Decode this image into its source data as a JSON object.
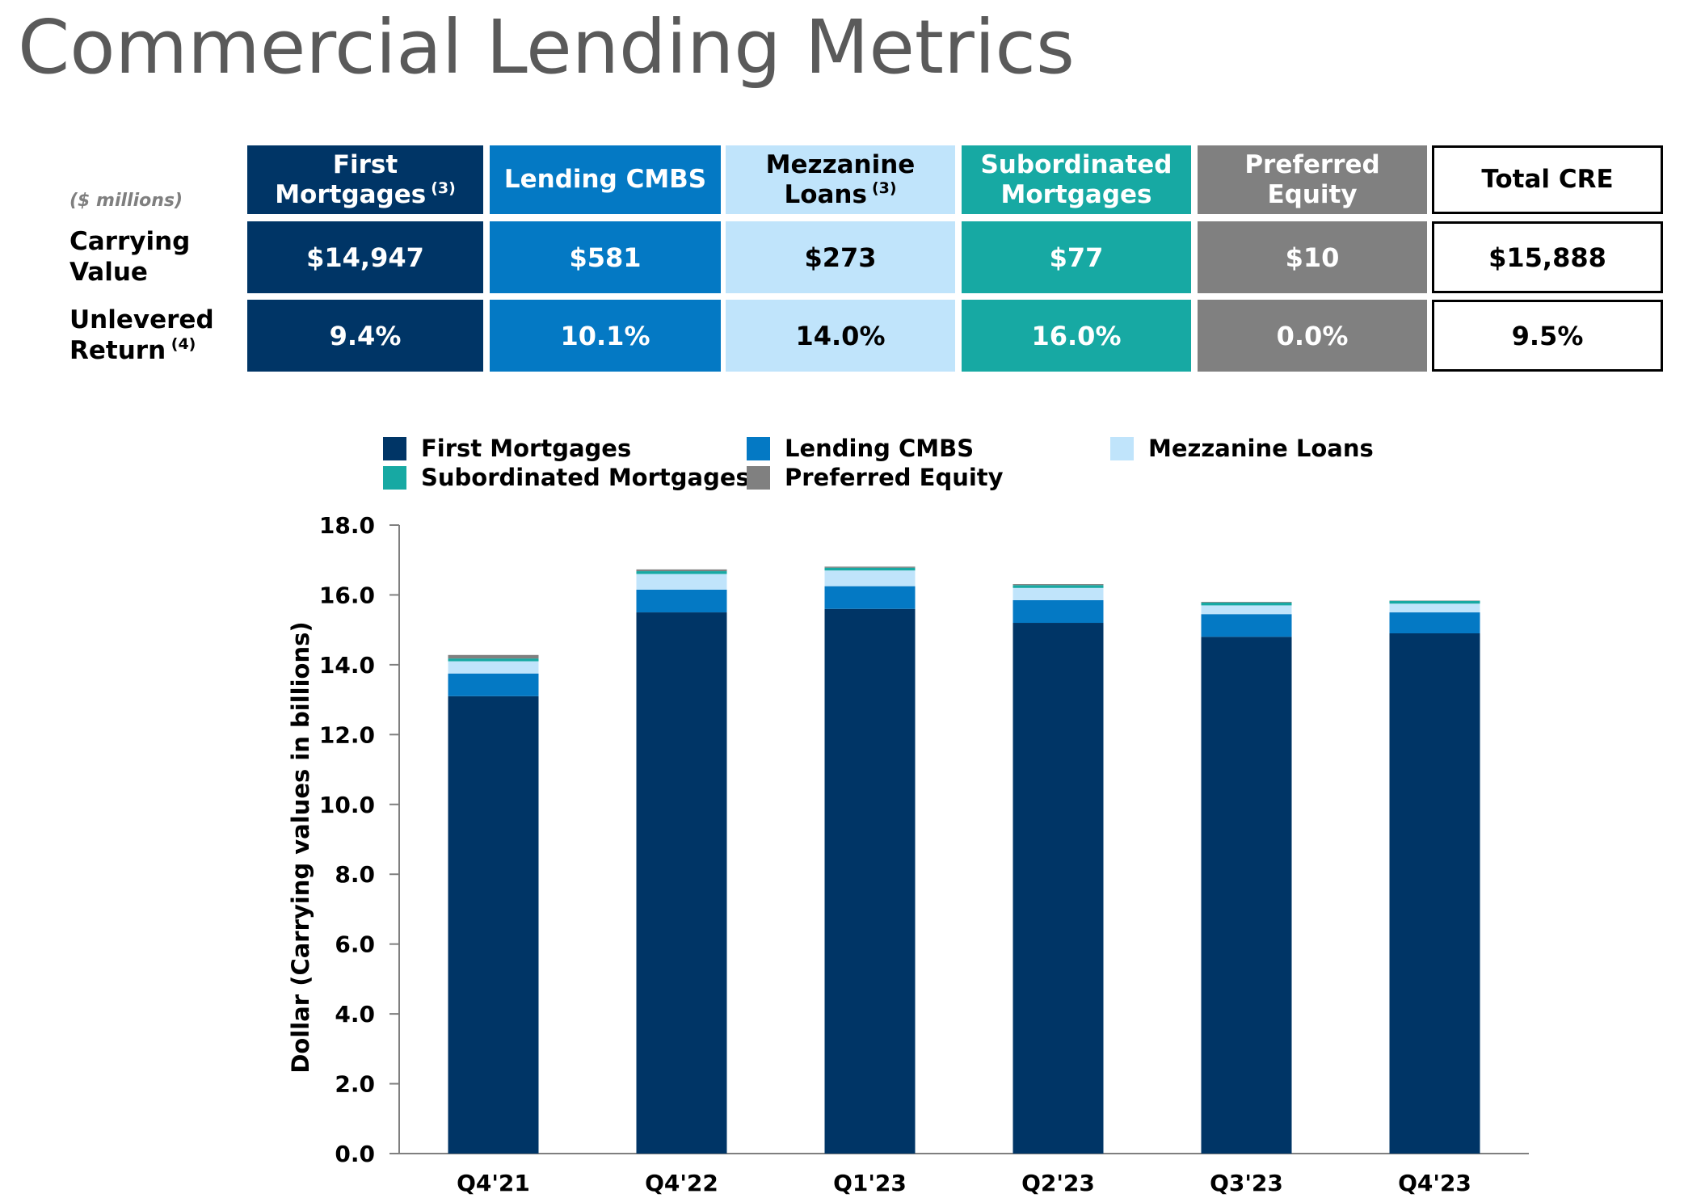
{
  "title": "Commercial Lending Metrics",
  "table": {
    "units_label": "($ millions)",
    "rows": [
      {
        "label_lines": [
          "Carrying",
          "Value"
        ],
        "footnote": ""
      },
      {
        "label_lines": [
          "Unlevered",
          "Return"
        ],
        "footnote": "(4)"
      }
    ],
    "columns": [
      {
        "key": "first",
        "header_lines": [
          "First Mortgages"
        ],
        "footnote": "(3)",
        "carrying_value": "$14,947",
        "unlevered_return": "9.4%"
      },
      {
        "key": "cmbs",
        "header_lines": [
          "Lending CMBS"
        ],
        "footnote": "",
        "carrying_value": "$581",
        "unlevered_return": "10.1%"
      },
      {
        "key": "mezz",
        "header_lines": [
          "Mezzanine",
          "Loans"
        ],
        "footnote": "(3)",
        "carrying_value": "$273",
        "unlevered_return": "14.0%"
      },
      {
        "key": "sub",
        "header_lines": [
          "Subordinated",
          "Mortgages"
        ],
        "footnote": "",
        "carrying_value": "$77",
        "unlevered_return": "16.0%"
      },
      {
        "key": "pref",
        "header_lines": [
          "Preferred Equity"
        ],
        "footnote": "",
        "carrying_value": "$10",
        "unlevered_return": "0.0%"
      },
      {
        "key": "total",
        "header_lines": [
          "Total CRE"
        ],
        "footnote": "",
        "carrying_value": "$15,888",
        "unlevered_return": "9.5%"
      }
    ]
  },
  "colors": {
    "first_mortgages": "#003566",
    "lending_cmbs": "#0479c4",
    "mezzanine_loans": "#c0e4fb",
    "subordinated_mortgages": "#17a9a3",
    "preferred_equity": "#808080",
    "title_gray": "#5a5a5a",
    "axis": "#7f7f7f"
  },
  "chart_data": {
    "type": "bar",
    "stacked": true,
    "categories": [
      "Q4'21",
      "Q4'22",
      "Q1'23",
      "Q2'23",
      "Q3'23",
      "Q4'23"
    ],
    "series": [
      {
        "name": "First Mortgages",
        "color": "#003566",
        "values": [
          13.1,
          15.5,
          15.6,
          15.2,
          14.8,
          14.9
        ]
      },
      {
        "name": "Lending CMBS",
        "color": "#0479c4",
        "values": [
          0.65,
          0.65,
          0.65,
          0.65,
          0.65,
          0.6
        ]
      },
      {
        "name": "Mezzanine Loans",
        "color": "#c0e4fb",
        "values": [
          0.35,
          0.45,
          0.45,
          0.35,
          0.25,
          0.25
        ]
      },
      {
        "name": "Subordinated Mortgages",
        "color": "#17a9a3",
        "values": [
          0.08,
          0.08,
          0.08,
          0.08,
          0.08,
          0.08
        ]
      },
      {
        "name": "Preferred Equity",
        "color": "#808080",
        "values": [
          0.1,
          0.05,
          0.03,
          0.03,
          0.02,
          0.01
        ]
      }
    ],
    "legend_columns": [
      [
        "First Mortgages",
        "Subordinated Mortgages"
      ],
      [
        "Lending CMBS",
        "Preferred Equity"
      ],
      [
        "Mezzanine Loans"
      ]
    ],
    "y_ticks": [
      "0.0",
      "2.0",
      "4.0",
      "6.0",
      "8.0",
      "10.0",
      "12.0",
      "14.0",
      "16.0",
      "18.0"
    ],
    "ylim": [
      0,
      18
    ],
    "xlabel": "",
    "ylabel": "Dollar (Carrying values in billions)",
    "legend_position": "top",
    "grid": false
  }
}
